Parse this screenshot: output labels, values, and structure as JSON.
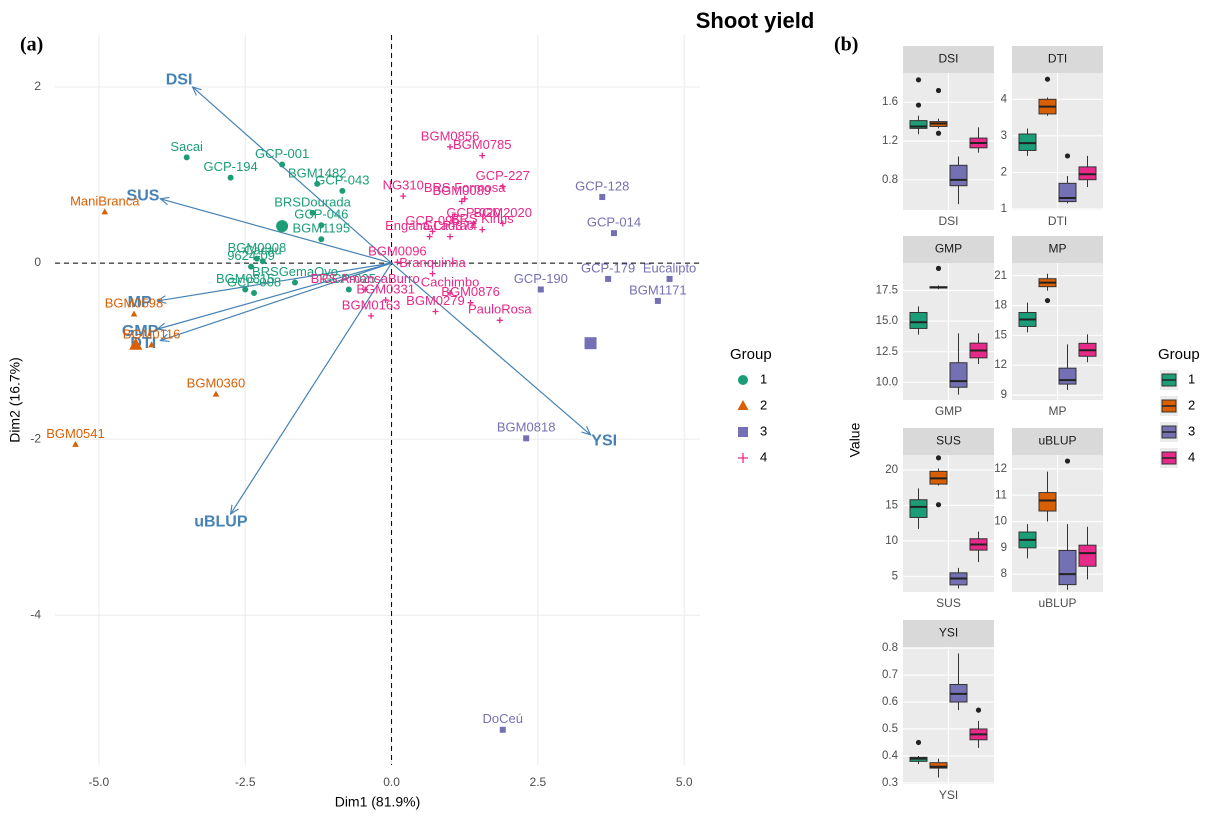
{
  "title": "Shoot yield",
  "chart_data": [
    {
      "type": "biplot",
      "panel_label": "(a)",
      "xlabel": "Dim1 (81.9%)",
      "ylabel": "Dim2 (16.7%)",
      "xlim": [
        -5.75,
        5.27
      ],
      "ylim": [
        -5.7,
        2.59
      ],
      "xticks": [
        {
          "value": -5,
          "label": "-5.0"
        },
        {
          "value": -2.5,
          "label": "-2.5"
        },
        {
          "value": 0,
          "label": "0.0"
        },
        {
          "value": 2.5,
          "label": "2.5"
        },
        {
          "value": 5,
          "label": "5.0"
        }
      ],
      "yticks": [
        2,
        0,
        -2,
        -4
      ],
      "grid": true,
      "legend_title": "Group",
      "series": [
        {
          "name": "1",
          "color": "#1b9e77",
          "marker": "circle",
          "labels": [
            "Sacai",
            "GCP-194",
            "GCP-001",
            "BGM1482",
            "GCP-043",
            "BRSDourada",
            "GCP-046",
            "BGM1195",
            "BGM0908",
            "Cacau",
            "9624-09",
            "GCP-008",
            "BGM0815",
            "GCP-025",
            "BRSGemaOvo"
          ],
          "x": [
            -3.5,
            -2.75,
            -1.87,
            -1.27,
            -0.84,
            -1.35,
            -1.2,
            -1.2,
            -2.3,
            -2.2,
            -2.4,
            -2.35,
            -2.5,
            -0.73,
            -1.65
          ],
          "values": [
            1.2,
            0.97,
            1.12,
            0.9,
            0.82,
            0.57,
            0.43,
            0.27,
            0.05,
            0.02,
            -0.04,
            -0.34,
            -0.3,
            -0.3,
            -0.22
          ],
          "centroid": {
            "x": -1.87,
            "y": 0.42
          }
        },
        {
          "name": "2",
          "color": "#d95f02",
          "marker": "triangle",
          "labels": [
            "ManiBranca",
            "BGM0598",
            "BGM0116",
            "BGM0360",
            "BGM0541"
          ],
          "x": [
            -4.9,
            -4.4,
            -4.1,
            -3.0,
            -5.4
          ],
          "values": [
            0.58,
            -0.58,
            -0.93,
            -1.49,
            -2.06
          ],
          "centroid": {
            "x": -4.37,
            "y": -0.93
          }
        },
        {
          "name": "3",
          "color": "#7570b3",
          "marker": "square",
          "labels": [
            "GCP-128",
            "GCP-014",
            "GCP-179",
            "GCP-190",
            "Eucalipto",
            "BGM1171",
            "BGM0818",
            "DoCeú"
          ],
          "x": [
            3.6,
            3.8,
            3.7,
            2.55,
            4.75,
            4.55,
            2.3,
            1.9
          ],
          "values": [
            0.75,
            0.34,
            -0.18,
            -0.3,
            -0.18,
            -0.43,
            -1.99,
            -5.3
          ],
          "centroid": {
            "x": 3.4,
            "y": -0.91
          }
        },
        {
          "name": "4",
          "color": "#e7298a",
          "marker": "plus",
          "labels": [
            "BGM0856",
            "BGM0785",
            "GCP-227",
            "BRS Formosa",
            "BGM0089",
            "NG310",
            "GCP-095",
            "GCP-020",
            "BGM2020",
            "BRS Kiriris",
            "GCP-374",
            "Engana Ladrão",
            "BGM0096",
            "Branquinha",
            "Cachimbo",
            "BRS AmansaBurro",
            "BGM0331",
            "BGM0876",
            "BGM0279",
            "PauloRosa",
            "BGM0163"
          ],
          "x": [
            1.0,
            1.55,
            1.9,
            1.25,
            1.2,
            0.2,
            0.7,
            1.4,
            1.9,
            1.55,
            1.0,
            0.65,
            0.1,
            0.7,
            1.0,
            -0.45,
            -0.1,
            1.35,
            0.75,
            1.85,
            -0.35
          ],
          "values": [
            1.32,
            1.22,
            0.87,
            0.73,
            0.7,
            0.76,
            0.36,
            0.45,
            0.45,
            0.38,
            0.3,
            0.3,
            0.01,
            -0.12,
            -0.34,
            -0.3,
            -0.42,
            -0.45,
            -0.55,
            -0.65,
            -0.6
          ]
        }
      ],
      "vectors": {
        "color": "#4682b4",
        "labels": [
          "DSI",
          "SUS",
          "MP",
          "GMP",
          "DTI",
          "YSI",
          "uBLUP"
        ],
        "x": [
          -3.4,
          -3.95,
          -4.0,
          -4.0,
          -3.95,
          3.4,
          -2.75
        ],
        "values": [
          2.0,
          0.73,
          -0.43,
          -0.75,
          -0.88,
          -1.95,
          -2.85
        ]
      }
    },
    {
      "type": "box",
      "panel_label": "(b)",
      "ylabel": "Value",
      "legend_title": "Group",
      "groups": [
        {
          "name": "1",
          "color": "#1b9e77"
        },
        {
          "name": "2",
          "color": "#d95f02"
        },
        {
          "name": "3",
          "color": "#7570b3"
        },
        {
          "name": "4",
          "color": "#e7298a"
        }
      ],
      "facets": [
        {
          "name": "DSI",
          "ylim": [
            0.49,
            1.9
          ],
          "yticks": [
            0.8,
            1.2,
            1.6
          ],
          "boxes": [
            {
              "low": 1.27,
              "q1": 1.33,
              "median": 1.35,
              "q3": 1.41,
              "high": 1.46,
              "outliers": [
                1.83,
                1.57
              ]
            },
            {
              "low": 1.33,
              "q1": 1.35,
              "median": 1.38,
              "q3": 1.4,
              "high": 1.43,
              "outliers": [
                1.72,
                1.28
              ]
            },
            {
              "low": 0.55,
              "q1": 0.74,
              "median": 0.8,
              "q3": 0.95,
              "high": 1.04,
              "outliers": []
            },
            {
              "low": 1.08,
              "q1": 1.13,
              "median": 1.18,
              "q3": 1.23,
              "high": 1.34,
              "outliers": []
            }
          ]
        },
        {
          "name": "DTI",
          "ylim": [
            0.97,
            4.72
          ],
          "yticks": [
            1,
            2,
            3,
            4
          ],
          "boxes": [
            {
              "low": 2.45,
              "q1": 2.6,
              "median": 2.8,
              "q3": 3.05,
              "high": 3.2,
              "outliers": []
            },
            {
              "low": 3.55,
              "q1": 3.6,
              "median": 3.8,
              "q3": 4.0,
              "high": 4.05,
              "outliers": [
                4.55
              ]
            },
            {
              "low": 1.15,
              "q1": 1.2,
              "median": 1.3,
              "q3": 1.7,
              "high": 1.9,
              "outliers": [
                2.45
              ]
            },
            {
              "low": 1.6,
              "q1": 1.8,
              "median": 1.95,
              "q3": 2.15,
              "high": 2.45,
              "outliers": []
            }
          ]
        },
        {
          "name": "GMP",
          "ylim": [
            8.56,
            19.74
          ],
          "yticks": [
            {
              "value": 10,
              "label": "10.0"
            },
            12.5,
            {
              "value": 15,
              "label": "15.0"
            },
            17.5
          ],
          "boxes": [
            {
              "low": 13.9,
              "q1": 14.4,
              "median": 14.9,
              "q3": 15.7,
              "high": 16.2,
              "outliers": []
            },
            {
              "low": 17.6,
              "q1": 17.7,
              "median": 17.75,
              "q3": 17.8,
              "high": 17.9,
              "outliers": [
                19.3
              ]
            },
            {
              "low": 9.0,
              "q1": 9.6,
              "median": 10.1,
              "q3": 11.6,
              "high": 14.0,
              "outliers": []
            },
            {
              "low": 11.5,
              "q1": 12.0,
              "median": 12.6,
              "q3": 13.2,
              "high": 14.0,
              "outliers": []
            }
          ]
        },
        {
          "name": "MP",
          "ylim": [
            8.5,
            22.28
          ],
          "yticks": [
            9,
            12,
            15,
            18,
            21
          ],
          "boxes": [
            {
              "low": 15.3,
              "q1": 15.9,
              "median": 16.6,
              "q3": 17.3,
              "high": 18.3,
              "outliers": []
            },
            {
              "low": 19.5,
              "q1": 19.9,
              "median": 20.3,
              "q3": 20.7,
              "high": 21.2,
              "outliers": [
                18.5
              ]
            },
            {
              "low": 9.5,
              "q1": 10.1,
              "median": 10.5,
              "q3": 11.7,
              "high": 14.1,
              "outliers": []
            },
            {
              "low": 12.3,
              "q1": 12.9,
              "median": 13.5,
              "q3": 14.2,
              "high": 15.1,
              "outliers": []
            }
          ]
        },
        {
          "name": "SUS",
          "ylim": [
            2.8,
            22.1
          ],
          "yticks": [
            5,
            10,
            15,
            20
          ],
          "boxes": [
            {
              "low": 11.7,
              "q1": 13.3,
              "median": 14.8,
              "q3": 15.8,
              "high": 17.4,
              "outliers": []
            },
            {
              "low": 17.8,
              "q1": 18.0,
              "median": 18.8,
              "q3": 19.8,
              "high": 20.2,
              "outliers": [
                21.7,
                15.1
              ]
            },
            {
              "low": 3.3,
              "q1": 3.8,
              "median": 4.7,
              "q3": 5.5,
              "high": 6.2,
              "outliers": []
            },
            {
              "low": 7.0,
              "q1": 8.7,
              "median": 9.5,
              "q3": 10.3,
              "high": 11.3,
              "outliers": []
            }
          ]
        },
        {
          "name": "uBLUP",
          "ylim": [
            7.32,
            12.53
          ],
          "yticks": [
            8,
            9,
            10,
            11,
            12
          ],
          "boxes": [
            {
              "low": 8.6,
              "q1": 9.0,
              "median": 9.3,
              "q3": 9.6,
              "high": 9.9,
              "outliers": []
            },
            {
              "low": 10.0,
              "q1": 10.4,
              "median": 10.8,
              "q3": 11.1,
              "high": 11.9,
              "outliers": []
            },
            {
              "low": 7.4,
              "q1": 7.6,
              "median": 8.0,
              "q3": 8.9,
              "high": 9.9,
              "outliers": [
                12.3
              ]
            },
            {
              "low": 7.8,
              "q1": 8.3,
              "median": 8.8,
              "q3": 9.1,
              "high": 9.8,
              "outliers": []
            }
          ]
        },
        {
          "name": "YSI",
          "ylim": [
            0.296,
            0.804
          ],
          "yticks": [
            0.3,
            0.4,
            0.5,
            0.6,
            0.7,
            0.8
          ],
          "boxes": [
            {
              "low": 0.37,
              "q1": 0.38,
              "median": 0.39,
              "q3": 0.395,
              "high": 0.4,
              "outliers": [
                0.45
              ]
            },
            {
              "low": 0.32,
              "q1": 0.355,
              "median": 0.36,
              "q3": 0.375,
              "high": 0.39,
              "outliers": []
            },
            {
              "low": 0.57,
              "q1": 0.6,
              "median": 0.63,
              "q3": 0.665,
              "high": 0.78,
              "outliers": []
            },
            {
              "low": 0.43,
              "q1": 0.46,
              "median": 0.48,
              "q3": 0.5,
              "high": 0.53,
              "outliers": [
                0.57
              ]
            }
          ]
        }
      ]
    }
  ]
}
